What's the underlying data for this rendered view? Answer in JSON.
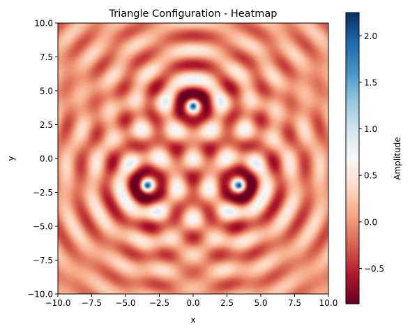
{
  "chart_data": {
    "type": "heatmap",
    "title": "Triangle Configuration - Heatmap",
    "xlabel": "x",
    "ylabel": "y",
    "xlim": [
      -10,
      10
    ],
    "ylim": [
      -10,
      10
    ],
    "x_ticks": [
      "−10.0",
      "−7.5",
      "−5.0",
      "−2.5",
      "0.0",
      "2.5",
      "5.0",
      "7.5",
      "10.0"
    ],
    "x_tick_values": [
      -10,
      -7.5,
      -5,
      -2.5,
      0,
      2.5,
      5,
      7.5,
      10
    ],
    "y_ticks": [
      "−10.0",
      "−7.5",
      "−5.0",
      "−2.5",
      "0.0",
      "2.5",
      "5.0",
      "7.5",
      "10.0"
    ],
    "y_tick_values": [
      -10,
      -7.5,
      -5,
      -2.5,
      0,
      2.5,
      5,
      7.5,
      10
    ],
    "colormap": "RdBu",
    "colorbar": {
      "label": "Amplitude",
      "range": [
        -0.88,
        2.25
      ],
      "ticks": [
        "−0.5",
        "0.0",
        "0.5",
        "1.0",
        "1.5",
        "2.0"
      ],
      "tick_values": [
        -0.5,
        0.0,
        0.5,
        1.0,
        1.5,
        2.0
      ]
    },
    "sources": [
      {
        "x": 0.0,
        "y": 3.9
      },
      {
        "x": -3.4,
        "y": -2.0
      },
      {
        "x": 3.4,
        "y": -2.0
      }
    ],
    "grid": false,
    "colors": {
      "low": "#67001f",
      "mid": "#f7f7f7",
      "high": "#053061"
    }
  }
}
